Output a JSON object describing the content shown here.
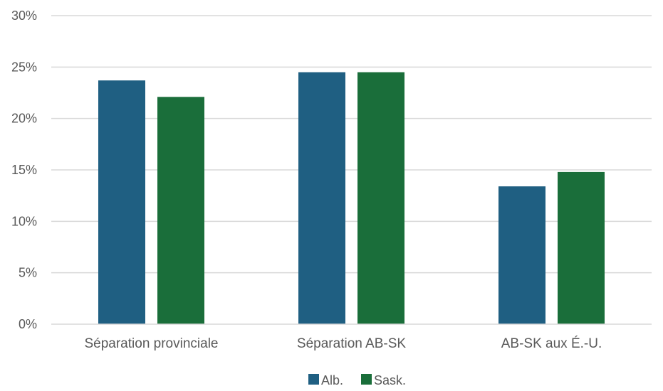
{
  "chart_data": {
    "type": "bar",
    "title": "",
    "xlabel": "",
    "ylabel": "",
    "categories": [
      "Séparation provinciale",
      "Séparation AB-SK",
      "AB-SK aux É.-U."
    ],
    "series": [
      {
        "name": "Alb.",
        "color": "#1f5f82",
        "values": [
          23.7,
          24.5,
          13.4
        ]
      },
      {
        "name": "Sask.",
        "color": "#1a6e3a",
        "values": [
          22.1,
          24.5,
          14.8
        ]
      }
    ],
    "ylim": [
      0,
      30
    ],
    "yticks": [
      0,
      5,
      10,
      15,
      20,
      25,
      30
    ],
    "ytick_labels": [
      "0%",
      "5%",
      "10%",
      "15%",
      "20%",
      "25%",
      "30%"
    ],
    "grid": true,
    "legend_position": "bottom"
  }
}
